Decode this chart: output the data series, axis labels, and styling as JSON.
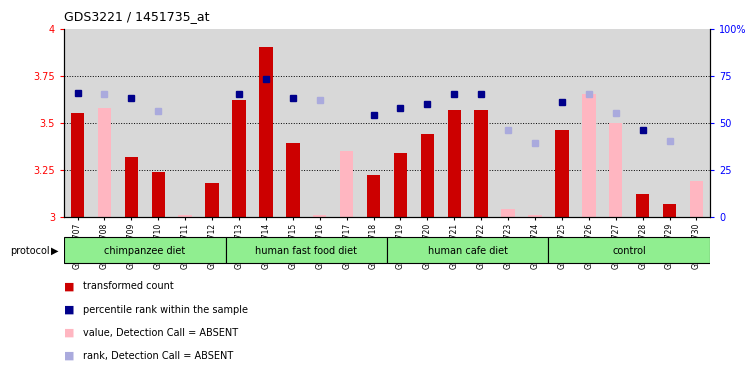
{
  "title": "GDS3221 / 1451735_at",
  "samples": [
    "GSM144707",
    "GSM144708",
    "GSM144709",
    "GSM144710",
    "GSM144711",
    "GSM144712",
    "GSM144713",
    "GSM144714",
    "GSM144715",
    "GSM144716",
    "GSM144717",
    "GSM144718",
    "GSM144719",
    "GSM144720",
    "GSM144721",
    "GSM144722",
    "GSM144723",
    "GSM144724",
    "GSM144725",
    "GSM144726",
    "GSM144727",
    "GSM144728",
    "GSM144729",
    "GSM144730"
  ],
  "values": [
    3.55,
    null,
    3.32,
    3.24,
    null,
    3.18,
    3.62,
    3.9,
    3.39,
    null,
    null,
    3.22,
    3.34,
    3.44,
    3.57,
    3.57,
    null,
    null,
    3.46,
    null,
    null,
    3.12,
    3.07,
    null
  ],
  "absent_values": [
    null,
    3.58,
    null,
    null,
    3.01,
    null,
    null,
    null,
    null,
    3.01,
    3.35,
    null,
    null,
    null,
    null,
    null,
    3.04,
    3.01,
    null,
    3.65,
    3.5,
    null,
    null,
    3.19
  ],
  "ranks": [
    66,
    null,
    63,
    null,
    null,
    null,
    65,
    73,
    63,
    null,
    null,
    54,
    58,
    60,
    65,
    65,
    null,
    null,
    61,
    null,
    null,
    46,
    null,
    null
  ],
  "absent_ranks": [
    null,
    65,
    null,
    56,
    null,
    null,
    null,
    null,
    null,
    62,
    null,
    null,
    null,
    null,
    null,
    null,
    46,
    39,
    null,
    65,
    55,
    null,
    40,
    null
  ],
  "protocols": [
    {
      "label": "chimpanzee diet",
      "start": 0,
      "end": 6
    },
    {
      "label": "human fast food diet",
      "start": 6,
      "end": 12
    },
    {
      "label": "human cafe diet",
      "start": 12,
      "end": 18
    },
    {
      "label": "control",
      "start": 18,
      "end": 24
    }
  ],
  "protocol_color": "#90ee90",
  "bar_color": "#cc0000",
  "absent_bar_color": "#ffb6c1",
  "rank_color": "#00008b",
  "absent_rank_color": "#aaaadd",
  "ylim_left": [
    3.0,
    4.0
  ],
  "ylim_right": [
    0,
    100
  ],
  "yticks_left": [
    3.0,
    3.25,
    3.5,
    3.75,
    4.0
  ],
  "yticks_left_labels": [
    "3",
    "3.25",
    "3.5",
    "3.75",
    "4"
  ],
  "yticks_right": [
    0,
    25,
    50,
    75,
    100
  ],
  "yticks_right_labels": [
    "0",
    "25",
    "50",
    "75",
    "100%"
  ],
  "grid_lines": [
    3.25,
    3.5,
    3.75
  ]
}
